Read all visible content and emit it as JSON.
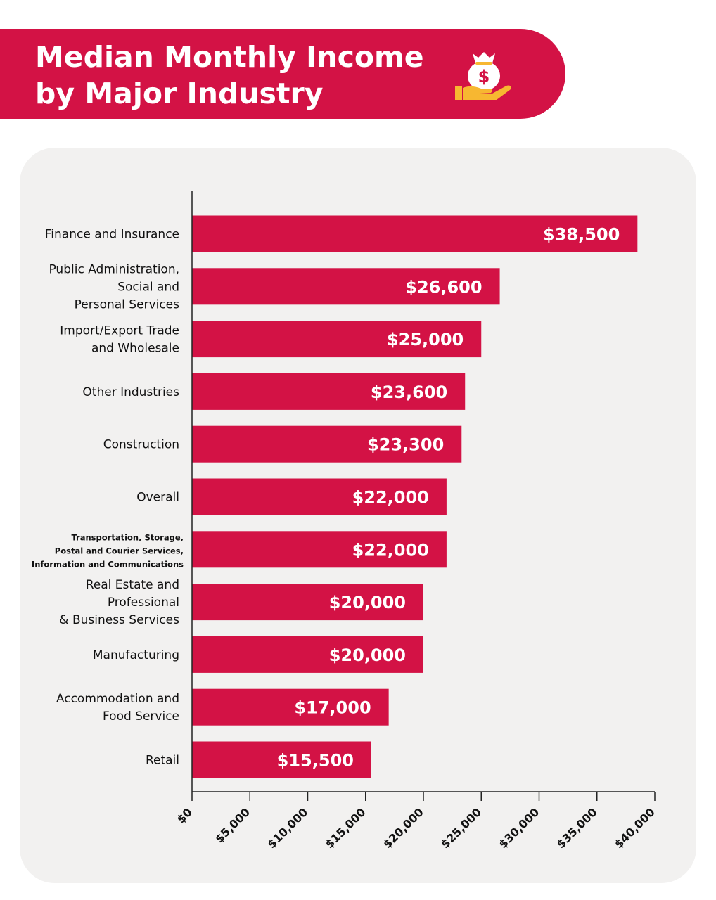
{
  "header": {
    "title": "Median Monthly Income by Major Industry",
    "icon": "money-bag-hand-icon",
    "accent_color": "#d31245",
    "icon_color": "#f7b731"
  },
  "chart_data": {
    "type": "bar",
    "orientation": "horizontal",
    "title": "Median Monthly Income by Major Industry",
    "xlabel": "",
    "ylabel": "",
    "xlim": [
      0,
      40000
    ],
    "bar_color": "#d31245",
    "grid": false,
    "categories": [
      [
        "Finance and Insurance"
      ],
      [
        "Public Administration,",
        "Social and",
        "Personal Services"
      ],
      [
        "Import/Export Trade",
        "and Wholesale"
      ],
      [
        "Other Industries"
      ],
      [
        "Construction"
      ],
      [
        "Overall"
      ],
      [
        "Transportation, Storage,",
        "Postal and Courier Services,",
        "Information and Communications"
      ],
      [
        "Real Estate and",
        "Professional",
        "& Business Services"
      ],
      [
        "Manufacturing"
      ],
      [
        "Accommodation and",
        "Food Service"
      ],
      [
        "Retail"
      ]
    ],
    "values": [
      38500,
      26600,
      25000,
      23600,
      23300,
      22000,
      22000,
      20000,
      20000,
      17000,
      15500
    ],
    "value_labels": [
      "$38,500",
      "$26,600",
      "$25,000",
      "$23,600",
      "$23,300",
      "$22,000",
      "$22,000",
      "$20,000",
      "$20,000",
      "$17,000",
      "$15,500"
    ],
    "x_ticks": [
      0,
      5000,
      10000,
      15000,
      20000,
      25000,
      30000,
      35000,
      40000
    ],
    "x_tick_labels": [
      "$0",
      "$5,000",
      "$10,000",
      "$15,000",
      "$20,000",
      "$25,000",
      "$30,000",
      "$35,000",
      "$40,000"
    ]
  }
}
